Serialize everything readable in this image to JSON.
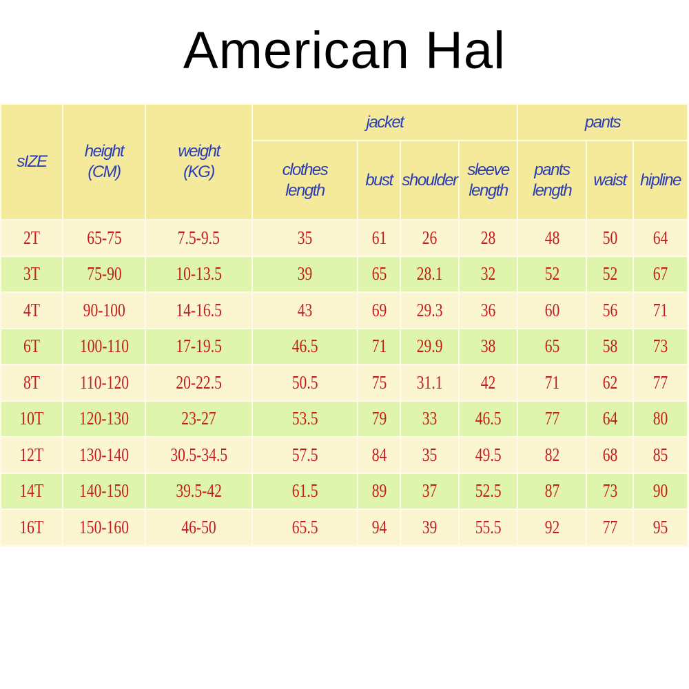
{
  "title": "American Hal",
  "header": {
    "size": "sIZE",
    "height": [
      "height",
      "(CM)"
    ],
    "weight": [
      "weight",
      "(KG)"
    ],
    "jacket": "jacket",
    "pants": "pants",
    "clothes_length": [
      "clothes",
      "length"
    ],
    "bust": "bust",
    "shoulder": "shoulder",
    "sleeve_length": [
      "sleeve",
      "length"
    ],
    "pants_length": [
      "pants",
      "length"
    ],
    "waist": "waist",
    "hipline": "hipline"
  },
  "rows": [
    [
      "2T",
      "65-75",
      "7.5-9.5",
      "35",
      "61",
      "26",
      "28",
      "48",
      "50",
      "64"
    ],
    [
      "3T",
      "75-90",
      "10-13.5",
      "39",
      "65",
      "28.1",
      "32",
      "52",
      "52",
      "67"
    ],
    [
      "4T",
      "90-100",
      "14-16.5",
      "43",
      "69",
      "29.3",
      "36",
      "60",
      "56",
      "71"
    ],
    [
      "6T",
      "100-110",
      "17-19.5",
      "46.5",
      "71",
      "29.9",
      "38",
      "65",
      "58",
      "73"
    ],
    [
      "8T",
      "110-120",
      "20-22.5",
      "50.5",
      "75",
      "31.1",
      "42",
      "71",
      "62",
      "77"
    ],
    [
      "10T",
      "120-130",
      "23-27",
      "53.5",
      "79",
      "33",
      "46.5",
      "77",
      "64",
      "80"
    ],
    [
      "12T",
      "130-140",
      "30.5-34.5",
      "57.5",
      "84",
      "35",
      "49.5",
      "82",
      "68",
      "85"
    ],
    [
      "14T",
      "140-150",
      "39.5-42",
      "61.5",
      "89",
      "37",
      "52.5",
      "87",
      "73",
      "90"
    ],
    [
      "16T",
      "150-160",
      "46-50",
      "65.5",
      "94",
      "39",
      "55.5",
      "92",
      "77",
      "95"
    ]
  ],
  "colors": {
    "header_bg": "#f5ea9c",
    "odd_row_bg": "#fbf5d2",
    "even_row_bg": "#dff5ae",
    "header_text": "#2b3db5",
    "value_text": "#c41c1c"
  }
}
